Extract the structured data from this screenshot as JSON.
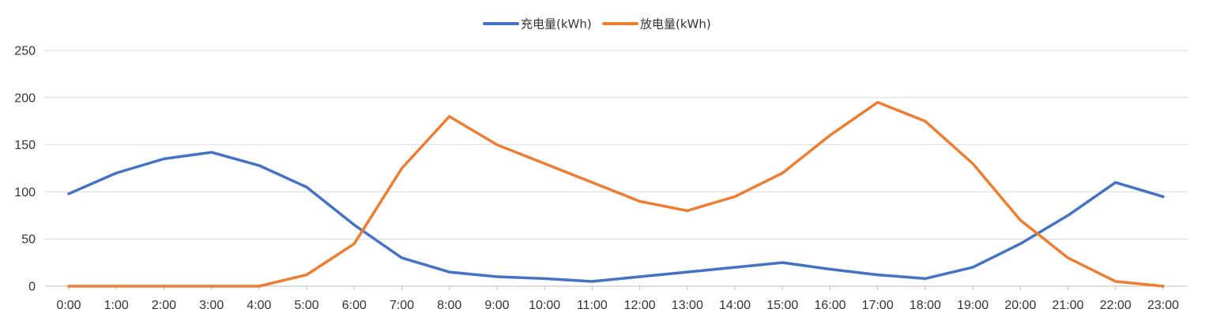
{
  "chart_data": {
    "type": "line",
    "title": "",
    "xlabel": "",
    "ylabel": "",
    "categories": [
      "0:00",
      "1:00",
      "2:00",
      "3:00",
      "4:00",
      "5:00",
      "6:00",
      "7:00",
      "8:00",
      "9:00",
      "10:00",
      "11:00",
      "12:00",
      "13:00",
      "14:00",
      "15:00",
      "16:00",
      "17:00",
      "18:00",
      "19:00",
      "20:00",
      "21:00",
      "22:00",
      "23:00"
    ],
    "ylim": [
      0,
      250
    ],
    "yticks": [
      0,
      50,
      100,
      150,
      200,
      250
    ],
    "grid": true,
    "legend_position": "top-center",
    "series": [
      {
        "name": "充电量(kWh)",
        "color": "#4472C4",
        "values": [
          98,
          120,
          135,
          142,
          128,
          105,
          65,
          30,
          15,
          10,
          8,
          5,
          10,
          15,
          20,
          25,
          18,
          12,
          8,
          20,
          45,
          75,
          110,
          95
        ]
      },
      {
        "name": "放电量(kWh)",
        "color": "#ED7D31",
        "values": [
          0,
          0,
          0,
          0,
          0,
          12,
          45,
          125,
          180,
          150,
          130,
          110,
          90,
          80,
          95,
          120,
          160,
          195,
          175,
          130,
          70,
          30,
          5,
          0
        ]
      }
    ]
  }
}
